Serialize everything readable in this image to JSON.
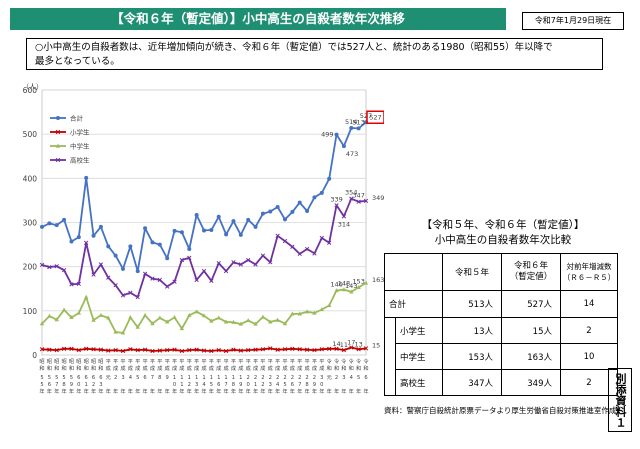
{
  "header": {
    "title": "【令和６年（暫定値）】小中高生の自殺者数年次推移",
    "date": "令和7年1月29日現在"
  },
  "summary": {
    "line1": "○小中高生の自殺者数は、近年増加傾向が続き、令和６年（暫定値）では527人と、統計のある1980（昭和55）年以降で",
    "line2": "最多となっている。"
  },
  "chart_data": {
    "type": "line",
    "ylabel": "（人）",
    "ylim": [
      0,
      600
    ],
    "yticks": [
      "0",
      "100",
      "200",
      "300",
      "400",
      "500",
      "600"
    ],
    "x_top": [
      "昭和55年",
      "昭和56年",
      "昭和57年",
      "昭和58年",
      "昭和59年",
      "昭和60年",
      "昭和61年",
      "昭和62年",
      "昭和63年",
      "平成元年",
      "平成2年",
      "平成3年",
      "平成4年",
      "平成5年",
      "平成6年",
      "平成7年",
      "平成8年",
      "平成9年",
      "平成10年",
      "平成11年",
      "平成12年",
      "平成13年",
      "平成14年",
      "平成15年",
      "平成16年",
      "平成17年",
      "平成18年",
      "平成19年",
      "平成20年",
      "平成21年",
      "平成22年",
      "平成23年",
      "平成24年",
      "平成25年",
      "平成26年",
      "平成27年",
      "平成28年",
      "平成29年",
      "平成30年",
      "令和元年",
      "令和2年",
      "令和3年",
      "令和4年",
      "令和5年",
      "令和6年"
    ],
    "x_digits": [
      "5",
      "5",
      "5",
      "5",
      "5",
      "6",
      "6",
      "6",
      "6",
      "元",
      "2",
      "3",
      "4",
      "5",
      "6",
      "7",
      "8",
      "9",
      "1",
      "1",
      "1",
      "1",
      "1",
      "1",
      "1",
      "1",
      "1",
      "1",
      "2",
      "2",
      "2",
      "2",
      "2",
      "2",
      "2",
      "2",
      "2",
      "2",
      "3",
      "元",
      "2",
      "3",
      "4",
      "5",
      "6"
    ],
    "x_digits2": [
      "5",
      "6",
      "7",
      "8",
      "9",
      "0",
      "1",
      "2",
      "3",
      "",
      "",
      "",
      "",
      "",
      "",
      "",
      "",
      "",
      "0",
      "1",
      "2",
      "3",
      "4",
      "5",
      "6",
      "7",
      "8",
      "9",
      "0",
      "1",
      "2",
      "3",
      "4",
      "5",
      "6",
      "7",
      "8",
      "9",
      "0",
      "",
      "",
      "",
      "",
      "",
      ""
    ],
    "series": [
      {
        "name": "合計",
        "color": "#4472c4",
        "values": [
          290,
          298,
          294,
          306,
          257,
          267,
          401,
          270,
          290,
          246,
          225,
          195,
          246,
          190,
          287,
          255,
          250,
          219,
          281,
          278,
          240,
          317,
          282,
          283,
          313,
          273,
          303,
          272,
          306,
          290,
          320,
          325,
          335,
          307,
          324,
          345,
          326,
          357,
          367,
          399,
          499,
          473,
          514,
          513,
          527
        ]
      },
      {
        "name": "小学生",
        "color": "#c00000",
        "values": [
          13,
          12,
          11,
          14,
          14,
          11,
          14,
          13,
          12,
          10,
          11,
          9,
          13,
          11,
          12,
          9,
          10,
          11,
          12,
          9,
          11,
          12,
          10,
          9,
          11,
          9,
          12,
          10,
          11,
          12,
          13,
          15,
          12,
          13,
          14,
          13,
          12,
          11,
          13,
          14,
          14,
          11,
          17,
          13,
          15
        ]
      },
      {
        "name": "中学生",
        "color": "#9bbb59",
        "values": [
          71,
          88,
          80,
          102,
          85,
          95,
          131,
          79,
          90,
          84,
          52,
          50,
          85,
          63,
          90,
          71,
          84,
          75,
          85,
          60,
          90,
          98,
          89,
          77,
          84,
          75,
          74,
          70,
          78,
          70,
          86,
          75,
          79,
          71,
          93,
          93,
          98,
          95,
          103,
          112,
          146,
          148,
          143,
          153,
          163
        ]
      },
      {
        "name": "高校生",
        "color": "#7030a0",
        "values": [
          204,
          199,
          201,
          192,
          160,
          161,
          254,
          182,
          205,
          175,
          158,
          135,
          141,
          131,
          184,
          173,
          170,
          155,
          166,
          215,
          220,
          170,
          190,
          168,
          208,
          190,
          210,
          205,
          215,
          205,
          225,
          210,
          270,
          258,
          245,
          229,
          240,
          230,
          265,
          254,
          339,
          314,
          354,
          347,
          349
        ]
      }
    ],
    "labels_shown": [
      {
        "series": 0,
        "index": 40,
        "text": "499"
      },
      {
        "series": 0,
        "index": 41,
        "text": "473"
      },
      {
        "series": 0,
        "index": 42,
        "text": "514"
      },
      {
        "series": 0,
        "index": 43,
        "text": "513"
      },
      {
        "series": 0,
        "index": 44,
        "text": "527"
      },
      {
        "series": 3,
        "index": 40,
        "text": "339"
      },
      {
        "series": 3,
        "index": 41,
        "text": "314"
      },
      {
        "series": 3,
        "index": 42,
        "text": "354"
      },
      {
        "series": 3,
        "index": 43,
        "text": "347"
      },
      {
        "series": 3,
        "index": 44,
        "text": "349"
      },
      {
        "series": 2,
        "index": 40,
        "text": "146"
      },
      {
        "series": 2,
        "index": 41,
        "text": "148"
      },
      {
        "series": 2,
        "index": 42,
        "text": "143"
      },
      {
        "series": 2,
        "index": 43,
        "text": "153"
      },
      {
        "series": 2,
        "index": 44,
        "text": "163"
      },
      {
        "series": 1,
        "index": 40,
        "text": "14"
      },
      {
        "series": 1,
        "index": 41,
        "text": "11"
      },
      {
        "series": 1,
        "index": 42,
        "text": "17"
      },
      {
        "series": 1,
        "index": 43,
        "text": "13"
      },
      {
        "series": 1,
        "index": 44,
        "text": "15"
      }
    ],
    "legend_position": "top-left",
    "grid": "horizontal"
  },
  "comparison": {
    "title1": "【令和５年、令和６年（暫定値）】",
    "title2": "小中高生の自殺者数年次比較",
    "headers": [
      "令和５年",
      "令和６年\n（暫定値）",
      "対前年増減数\n（Ｒ６－Ｒ５）"
    ],
    "rows": [
      {
        "label": "合計",
        "r5": "513人",
        "r6": "527人",
        "diff": "14"
      },
      {
        "label": "小学生",
        "r5": "13人",
        "r6": "15人",
        "diff": "2"
      },
      {
        "label": "中学生",
        "r5": "153人",
        "r6": "163人",
        "diff": "10"
      },
      {
        "label": "高校生",
        "r5": "347人",
        "r6": "349人",
        "diff": "2"
      }
    ]
  },
  "stamp": "別添資料１",
  "source": "資料：警察庁自殺統計原票データより厚生労働省自殺対策推進室作成"
}
